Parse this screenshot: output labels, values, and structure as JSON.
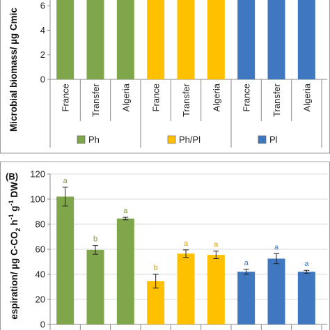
{
  "colors": {
    "Ph": "#7fa64a",
    "Ph/Pl": "#ffc000",
    "Pl": "#3f78c0",
    "sig_Ph": "#7a9a3a",
    "sig_PhPl": "#d9a000",
    "sig_Pl": "#3f78c0"
  },
  "chart_data": [
    {
      "panel": "A",
      "type": "bar",
      "ylabel": "Microbial biomass/ µg Cmic",
      "yticks": [
        "6",
        "4",
        "2",
        "0"
      ],
      "categories": [
        "France",
        "Transfer",
        "Algeria",
        "France",
        "Transfer",
        "Algeria",
        "France",
        "Transfer",
        "Algeria"
      ],
      "series": [
        {
          "name": "Ph",
          "values_visible_cropped": true
        },
        {
          "name": "Ph/Pl",
          "values_visible_cropped": true
        },
        {
          "name": "Pl",
          "values_visible_cropped": true
        }
      ],
      "bar_groups": [
        "Ph",
        "Ph",
        "Ph",
        "Ph/Pl",
        "Ph/Pl",
        "Ph/Pl",
        "Pl",
        "Pl",
        "Pl"
      ],
      "ylim": [
        0,
        7.6
      ],
      "legend": [
        {
          "label": "Ph",
          "color": "#7fa64a"
        },
        {
          "label": "Ph/Pl",
          "color": "#ffc000"
        },
        {
          "label": "Pl",
          "color": "#3f78c0"
        }
      ]
    },
    {
      "panel": "B",
      "type": "bar",
      "panel_label": "(B)",
      "ylabel_parts": [
        "espiration/ µg C-CO",
        "2",
        " h",
        "-1",
        " g",
        "-1",
        " DW"
      ],
      "yticks": [
        0,
        20,
        40,
        60,
        80,
        100,
        120
      ],
      "ylim": [
        0,
        120
      ],
      "values": [
        102,
        59.5,
        84.5,
        34.5,
        56.5,
        55.5,
        42,
        52.5,
        42
      ],
      "errors": [
        7.5,
        3.5,
        1,
        5.5,
        3,
        3,
        2,
        4,
        1.2
      ],
      "significance": [
        "a",
        "b",
        "a",
        "b",
        "a",
        "a",
        "a",
        "a",
        "a"
      ],
      "bar_groups": [
        "Ph",
        "Ph",
        "Ph",
        "Ph/Pl",
        "Ph/Pl",
        "Ph/Pl",
        "Pl",
        "Pl",
        "Pl"
      ]
    }
  ]
}
